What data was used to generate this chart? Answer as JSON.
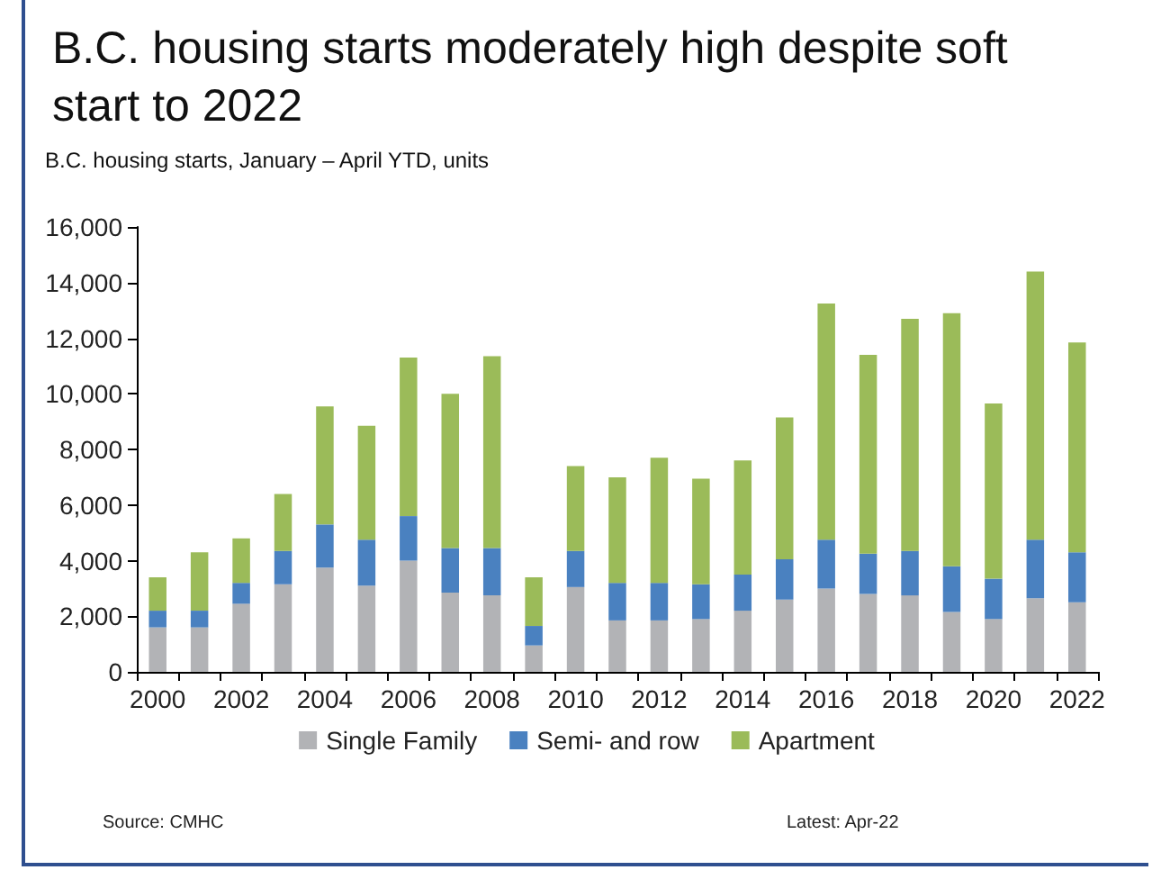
{
  "chart_data": {
    "type": "bar",
    "title": "B.C. housing starts moderately high despite soft start to 2022",
    "subtitle": "B.C. housing starts, January – April YTD, units",
    "categories": [
      "2000",
      null,
      "2002",
      null,
      "2004",
      null,
      "2006",
      null,
      "2008",
      null,
      "2010",
      null,
      "2012",
      null,
      "2014",
      null,
      "2016",
      null,
      "2018",
      null,
      "2020",
      null,
      "2022"
    ],
    "stacked": true,
    "series": [
      {
        "name": "Single Family",
        "color": "#b2b3b6",
        "values": [
          1600,
          1600,
          2450,
          3150,
          3750,
          3100,
          4000,
          2850,
          2750,
          950,
          3050,
          1850,
          1850,
          1900,
          2200,
          2600,
          3000,
          2800,
          2750,
          2150,
          1900,
          2650,
          2500
        ]
      },
      {
        "name": "Semi- and row",
        "color": "#4a81c0",
        "values": [
          600,
          600,
          750,
          1200,
          1550,
          1650,
          1600,
          1600,
          1700,
          700,
          1300,
          1350,
          1350,
          1250,
          1300,
          1450,
          1750,
          1450,
          1600,
          1650,
          1450,
          2100,
          1800
        ]
      },
      {
        "name": "Apartment",
        "color": "#9bbb59",
        "values": [
          1200,
          2100,
          1600,
          2050,
          4250,
          4100,
          5700,
          5550,
          6900,
          1750,
          3050,
          3800,
          4500,
          3800,
          4100,
          5100,
          8500,
          7150,
          8350,
          9100,
          6300,
          9650,
          7550
        ]
      }
    ],
    "ylim": [
      0,
      16000
    ],
    "yticks": [
      0,
      {
        "value": 2000,
        "label": "2,000"
      },
      {
        "value": 4000,
        "label": "4,000"
      },
      {
        "value": 6000,
        "label": "6,000"
      },
      {
        "value": 8000,
        "label": "8,000"
      },
      {
        "value": 10000,
        "label": "10,000"
      },
      {
        "value": 12000,
        "label": "12,000"
      },
      {
        "value": 14000,
        "label": "14,000"
      },
      {
        "value": 16000,
        "label": "16,000"
      }
    ],
    "grid": false,
    "legend": "bottom",
    "annotations": [
      "Source: CMHC",
      "Latest: Apr-22"
    ]
  }
}
